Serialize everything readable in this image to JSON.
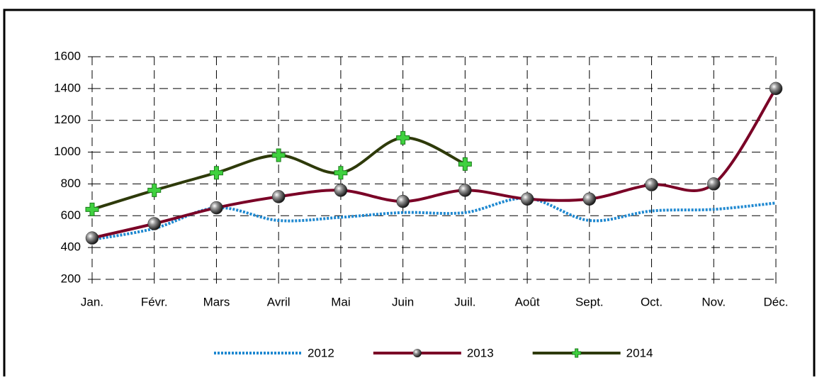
{
  "chart_data": {
    "type": "line",
    "smooth": true,
    "grid": true,
    "legend": "bottom",
    "categories": [
      "Jan.",
      "Févr.",
      "Mars",
      "Avril",
      "Mai",
      "Juin",
      "Juil.",
      "Août",
      "Sept.",
      "Oct.",
      "Nov.",
      "Déc."
    ],
    "ylim": [
      200,
      1600
    ],
    "yticks": [
      200,
      400,
      600,
      800,
      1000,
      1200,
      1400,
      1600
    ],
    "series": [
      {
        "name": "2012",
        "color": "#1e88d0",
        "dash": "dotted",
        "marker": "none",
        "values": [
          450,
          520,
          650,
          570,
          590,
          620,
          620,
          710,
          570,
          630,
          640,
          680
        ]
      },
      {
        "name": "2013",
        "color": "#7a0026",
        "dash": "solid",
        "marker": "sphere",
        "values": [
          460,
          550,
          650,
          720,
          760,
          690,
          760,
          705,
          705,
          795,
          800,
          1400
        ]
      },
      {
        "name": "2014",
        "color": "#2e3a0a",
        "dash": "solid",
        "marker": "plus",
        "values": [
          640,
          760,
          870,
          980,
          870,
          1090,
          925,
          null,
          null,
          null,
          null,
          null
        ]
      }
    ]
  }
}
